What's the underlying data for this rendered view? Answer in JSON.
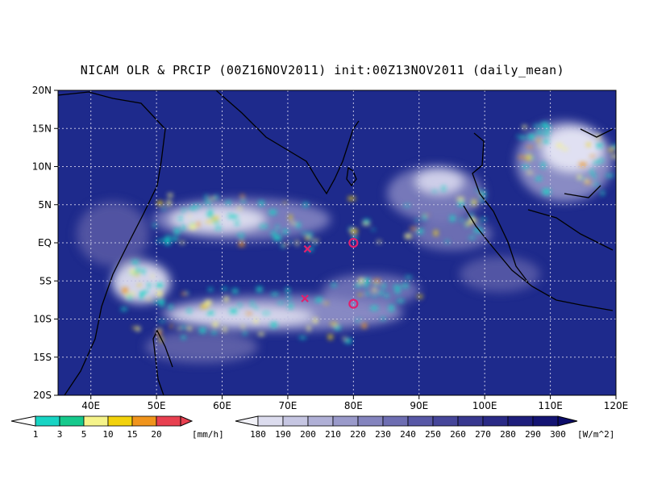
{
  "title": "NICAM OLR & PRCIP (00Z16NOV2011) init:00Z13NOV2011 (daily_mean)",
  "map": {
    "lat_labels": [
      "20N",
      "15N",
      "10N",
      "5N",
      "EQ",
      "5S",
      "10S",
      "15S",
      "20S"
    ],
    "lon_labels": [
      "40E",
      "50E",
      "60E",
      "70E",
      "80E",
      "90E",
      "100E",
      "110E",
      "120E"
    ],
    "lat_range": [
      -20,
      20
    ],
    "lon_range": [
      35,
      120
    ],
    "grid": "dotted",
    "ocean_color": "#1e2a8c"
  },
  "markers": [
    {
      "type": "x",
      "lon": 73,
      "lat": -0.8,
      "color": "#e0206e"
    },
    {
      "type": "x",
      "lon": 72.6,
      "lat": -7.3,
      "color": "#e0206e"
    },
    {
      "type": "circle",
      "lon": 80,
      "lat": 0,
      "color": "#e0206e"
    },
    {
      "type": "circle",
      "lon": 80,
      "lat": -8,
      "color": "#e0206e"
    }
  ],
  "precip_legend": {
    "labels": [
      "1",
      "3",
      "5",
      "10",
      "15",
      "20"
    ],
    "colors": [
      "#18d4c4",
      "#16c98c",
      "#f5f38a",
      "#f2d20c",
      "#f0941c",
      "#e84050"
    ],
    "unit": "[mm/h]"
  },
  "olr_legend": {
    "labels": [
      "180",
      "190",
      "200",
      "210",
      "220",
      "230",
      "240",
      "250",
      "260",
      "270",
      "280",
      "290",
      "300"
    ],
    "colors": [
      "#f2f2f8",
      "#dcdcee",
      "#c6c6e2",
      "#b0b0d6",
      "#9a9aca",
      "#8484be",
      "#6e6eb2",
      "#5858a6",
      "#46469a",
      "#38388f",
      "#2a2a86",
      "#1e1e7c",
      "#141473",
      "#0c0c6a"
    ],
    "unit": "[W/m^2]"
  }
}
